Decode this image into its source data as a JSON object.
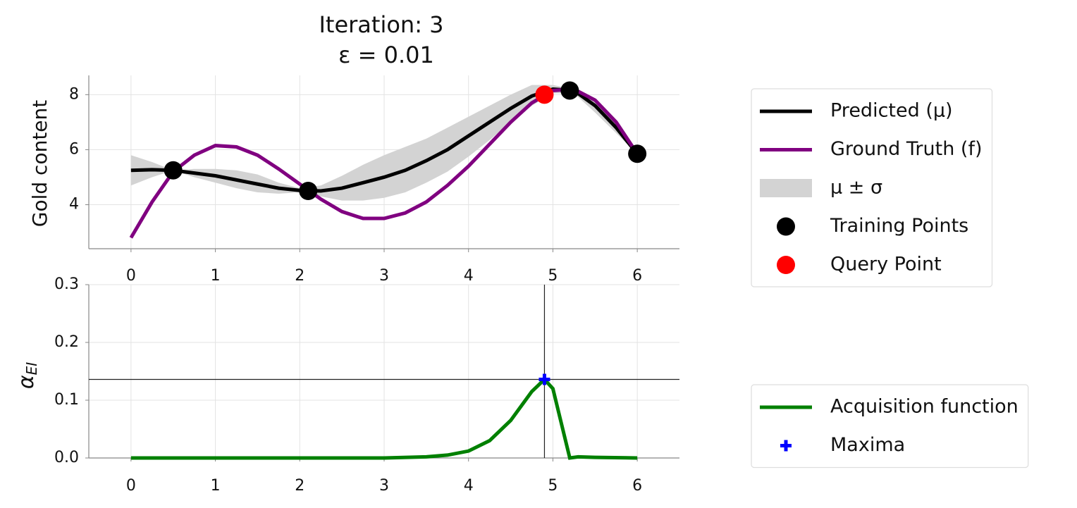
{
  "chart_data": [
    {
      "type": "line",
      "title": "Iteration: 3",
      "subtitle": "ε = 0.01",
      "ylabel": "Gold content",
      "xlim": [
        -0.5,
        6.5
      ],
      "ylim": [
        2.4,
        8.7
      ],
      "xticks": [
        0,
        1,
        2,
        3,
        4,
        5,
        6
      ],
      "yticks": [
        4,
        6,
        8
      ],
      "grid": true,
      "legend": "right",
      "series": [
        {
          "name": "Predicted (μ)",
          "color": "#000000",
          "style": "line",
          "x": [
            0,
            0.25,
            0.5,
            0.75,
            1,
            1.25,
            1.5,
            1.75,
            2,
            2.25,
            2.5,
            2.75,
            3,
            3.25,
            3.5,
            3.75,
            4,
            4.25,
            4.5,
            4.75,
            5,
            5.25,
            5.5,
            5.75,
            6
          ],
          "values": [
            5.25,
            5.27,
            5.25,
            5.15,
            5.05,
            4.9,
            4.75,
            4.6,
            4.52,
            4.5,
            4.6,
            4.8,
            5.0,
            5.25,
            5.6,
            6.0,
            6.5,
            7.0,
            7.5,
            7.95,
            8.2,
            8.15,
            7.6,
            6.8,
            5.85
          ]
        },
        {
          "name": "Ground Truth (f)",
          "color": "#800080",
          "style": "line",
          "x": [
            0,
            0.25,
            0.5,
            0.75,
            1,
            1.25,
            1.5,
            1.75,
            2,
            2.25,
            2.5,
            2.75,
            3,
            3.25,
            3.5,
            3.75,
            4,
            4.25,
            4.5,
            4.75,
            5,
            5.25,
            5.5,
            5.75,
            6
          ],
          "values": [
            2.8,
            4.1,
            5.2,
            5.8,
            6.15,
            6.1,
            5.8,
            5.3,
            4.75,
            4.2,
            3.75,
            3.5,
            3.5,
            3.7,
            4.1,
            4.7,
            5.4,
            6.2,
            7.0,
            7.7,
            8.15,
            8.2,
            7.8,
            7.0,
            5.85
          ]
        },
        {
          "name": "μ ± σ",
          "color": "#d3d3d3",
          "style": "band",
          "x": [
            0,
            0.25,
            0.5,
            0.75,
            1,
            1.25,
            1.5,
            1.75,
            2,
            2.25,
            2.5,
            2.75,
            3,
            3.25,
            3.5,
            3.75,
            4,
            4.25,
            4.5,
            4.75,
            5,
            5.25,
            5.5,
            5.75,
            6
          ],
          "lower": [
            4.7,
            5.0,
            5.25,
            5.0,
            4.8,
            4.6,
            4.45,
            4.4,
            4.45,
            4.3,
            4.15,
            4.15,
            4.25,
            4.45,
            4.8,
            5.2,
            5.75,
            6.35,
            7.0,
            7.6,
            8.05,
            8.05,
            7.35,
            6.6,
            5.85
          ],
          "upper": [
            5.8,
            5.55,
            5.25,
            5.3,
            5.3,
            5.25,
            5.1,
            4.8,
            4.6,
            4.7,
            5.05,
            5.45,
            5.8,
            6.1,
            6.4,
            6.8,
            7.2,
            7.6,
            8.0,
            8.35,
            8.35,
            8.2,
            7.85,
            7.0,
            5.85
          ]
        },
        {
          "name": "Training Points",
          "color": "#000000",
          "style": "scatter",
          "x": [
            0.5,
            2.1,
            5.2,
            6.0
          ],
          "values": [
            5.25,
            4.5,
            8.15,
            5.85
          ]
        },
        {
          "name": "Query Point",
          "color": "#ff0000",
          "style": "scatter",
          "x": [
            4.9
          ],
          "values": [
            8.0
          ]
        }
      ]
    },
    {
      "type": "line",
      "ylabel": "α",
      "ylabel_subscript": "EI",
      "xlim": [
        -0.5,
        6.5
      ],
      "ylim": [
        0,
        0.3
      ],
      "xticks": [
        0,
        1,
        2,
        3,
        4,
        5,
        6
      ],
      "yticks": [
        {
          "value": 0,
          "label": "0.0"
        },
        0.1,
        0.2,
        0.3
      ],
      "grid": true,
      "legend": "right",
      "crosshair": true,
      "series": [
        {
          "name": "Acquisition function",
          "color": "#008000",
          "style": "line",
          "x": [
            0,
            1,
            2,
            3,
            3.5,
            3.75,
            4,
            4.25,
            4.5,
            4.75,
            4.9,
            5.0,
            5.1,
            5.2,
            5.3,
            5.5,
            6
          ],
          "values": [
            0,
            0,
            0,
            0,
            0.002,
            0.005,
            0.012,
            0.03,
            0.065,
            0.115,
            0.136,
            0.12,
            0.06,
            0,
            0.002,
            0.001,
            0
          ]
        },
        {
          "name": "Maxima",
          "color": "#0000ff",
          "style": "plus",
          "x": [
            4.9
          ],
          "values": [
            0.136
          ]
        }
      ]
    }
  ]
}
